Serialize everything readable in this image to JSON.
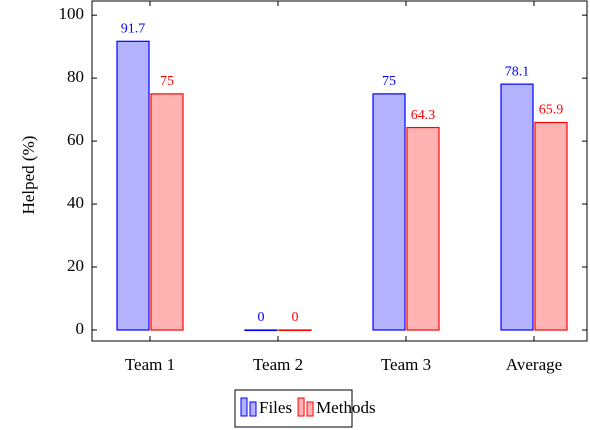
{
  "chart_data": {
    "type": "bar",
    "categories": [
      "Team 1",
      "Team 2",
      "Team 3",
      "Average"
    ],
    "series": [
      {
        "name": "Files",
        "color": "#b3b3ff",
        "edge": "#0000ff",
        "values": [
          91.7,
          0,
          75,
          78.1
        ]
      },
      {
        "name": "Methods",
        "color": "#ffb3b3",
        "edge": "#ff0000",
        "values": [
          75,
          0,
          64.3,
          65.9
        ]
      }
    ],
    "ylabel": "Helped (%)",
    "ylim": [
      -3.5,
      104.5
    ],
    "yticks": [
      0,
      20,
      40,
      60,
      80,
      100
    ]
  }
}
